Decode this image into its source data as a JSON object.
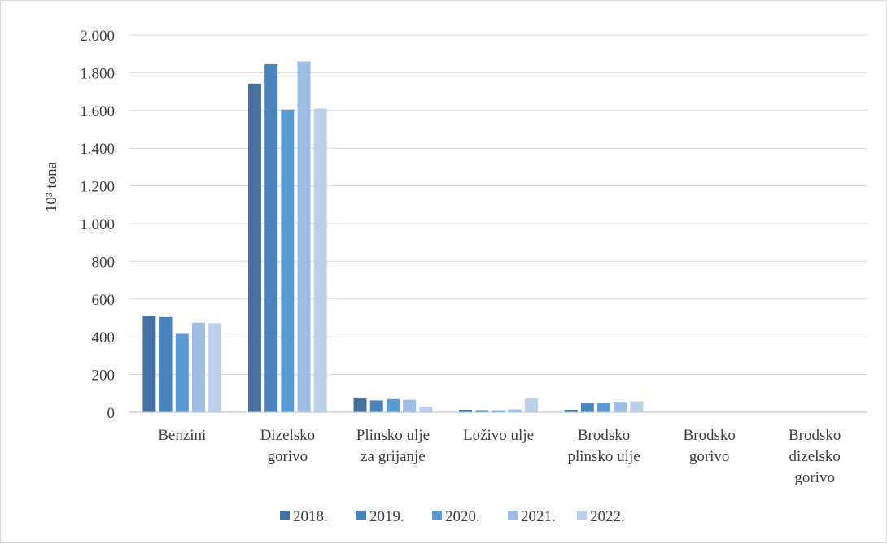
{
  "chart_data": {
    "type": "bar",
    "title": "",
    "xlabel": "",
    "ylabel": "10³ tona",
    "ylim": [
      0,
      2000
    ],
    "ytick_values": [
      0,
      200,
      400,
      600,
      800,
      1000,
      1200,
      1400,
      1600,
      1800,
      2000
    ],
    "ytick_labels": [
      "0",
      "200",
      "400",
      "600",
      "800",
      "1.000",
      "1.200",
      "1.400",
      "1.600",
      "1.800",
      "2.000"
    ],
    "grid": true,
    "legend_position": "bottom",
    "categories": [
      [
        "Benzini"
      ],
      [
        "Dizelsko",
        "gorivo"
      ],
      [
        "Plinsko ulje",
        "za grijanje"
      ],
      [
        "Loživo ulje"
      ],
      [
        "Brodsko",
        "plinsko ulje"
      ],
      [
        "Brodsko",
        "gorivo"
      ],
      [
        "Brodsko",
        "dizelsko",
        "gorivo"
      ]
    ],
    "series": [
      {
        "name": "2018.",
        "color": "#44719f",
        "values": [
          512,
          1742,
          78,
          13,
          13,
          0,
          0
        ]
      },
      {
        "name": "2019.",
        "color": "#4a84be",
        "values": [
          505,
          1845,
          63,
          11,
          47,
          0,
          0
        ]
      },
      {
        "name": "2020.",
        "color": "#5b9bd5",
        "values": [
          416,
          1605,
          70,
          10,
          48,
          0,
          0
        ]
      },
      {
        "name": "2021.",
        "color": "#9dbde4",
        "values": [
          475,
          1860,
          66,
          15,
          55,
          0,
          0
        ]
      },
      {
        "name": "2022.",
        "color": "#bcd0ea",
        "values": [
          473,
          1610,
          30,
          73,
          58,
          0,
          0
        ]
      }
    ]
  }
}
